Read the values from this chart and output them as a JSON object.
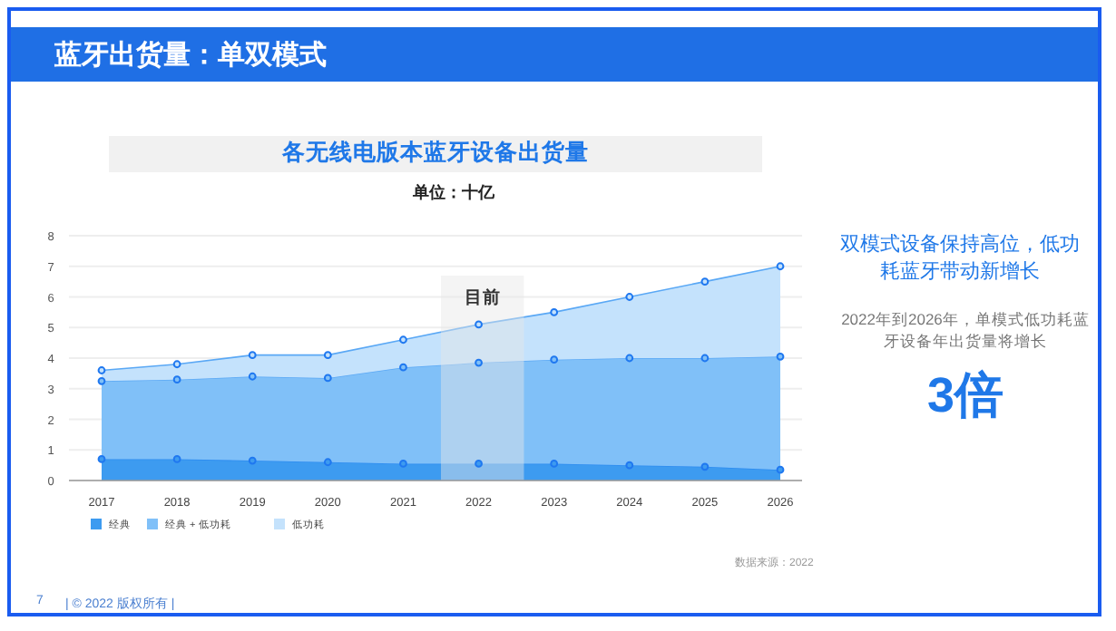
{
  "chart_data": {
    "type": "area",
    "stacked": true,
    "title": "蓝牙出货量：单双模式",
    "subtitle": "各无线电版本蓝牙设备出货量",
    "ylabel": "单位：十亿",
    "categories": [
      "2017",
      "2018",
      "2019",
      "2020",
      "2021",
      "2022",
      "2023",
      "2024",
      "2025",
      "2026"
    ],
    "series": [
      {
        "name": "经典",
        "color": "#3d9bf0",
        "values": [
          0.7,
          0.7,
          0.65,
          0.6,
          0.55,
          0.55,
          0.55,
          0.5,
          0.45,
          0.35
        ]
      },
      {
        "name": "经典 + 低功耗",
        "color": "#80c0f8",
        "values": [
          2.55,
          2.6,
          2.75,
          2.75,
          3.15,
          3.3,
          3.4,
          3.5,
          3.55,
          3.7
        ]
      },
      {
        "name": "低功耗",
        "color": "#c4e2fc",
        "values": [
          0.35,
          0.5,
          0.7,
          0.75,
          0.9,
          1.25,
          1.55,
          2.0,
          2.5,
          2.95
        ]
      }
    ],
    "ylim": [
      0,
      8
    ],
    "yticks": [
      0,
      1,
      2,
      3,
      4,
      5,
      6,
      7,
      8
    ],
    "grid": "y",
    "marker": "circle",
    "line_style": "solid",
    "legend": "bottom left",
    "bands": [
      {
        "axis": "x",
        "from": "2022",
        "to": "2022",
        "label": "目前",
        "color": "#e6e6e6"
      }
    ],
    "annotations": [
      "双模式设备保持高位，低功耗蓝牙带动新增长",
      "2022年到2026年，单模式低功耗蓝牙设备年出货量将增长",
      "3倍",
      "数据来源：2022",
      "7",
      "| © 2022 版权所有 |"
    ]
  }
}
